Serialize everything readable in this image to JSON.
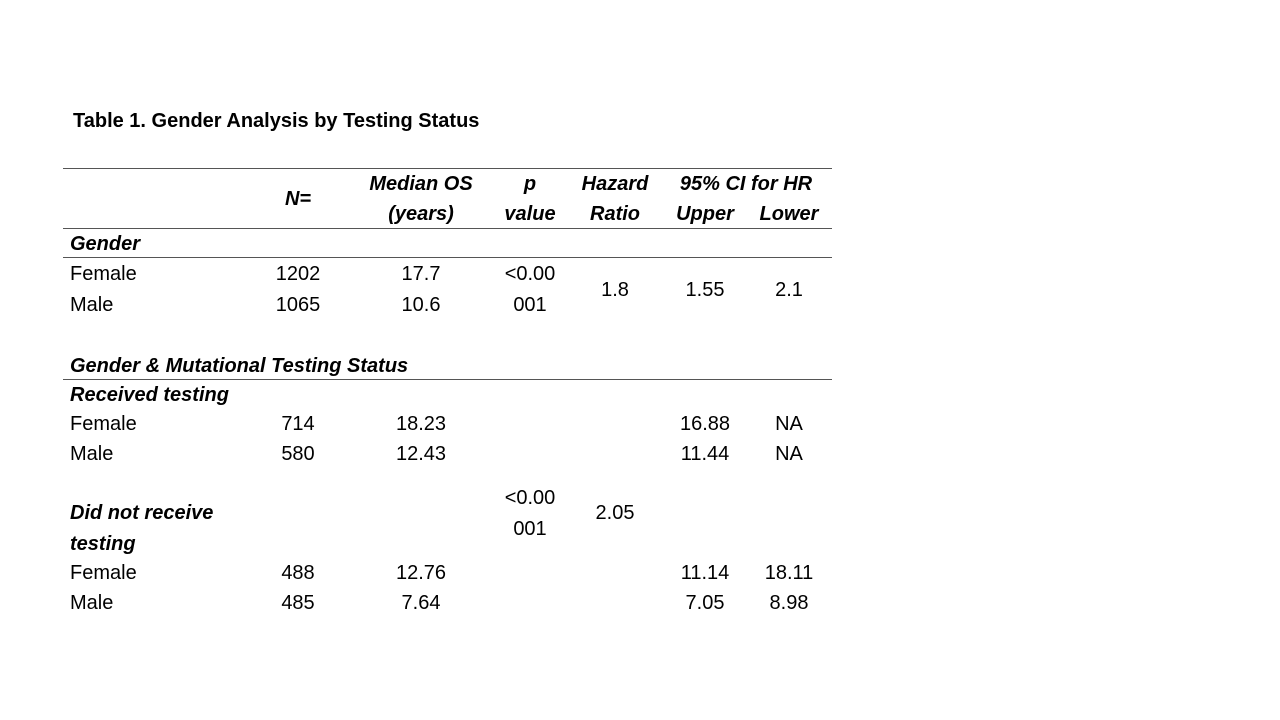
{
  "title": "Table 1. Gender Analysis by Testing Status",
  "headers": {
    "n": "N=",
    "median_os_1": "Median OS",
    "median_os_2": "(years)",
    "p_1": "p",
    "p_2": "value",
    "hr_1": "Hazard",
    "hr_2": "Ratio",
    "ci": "95% CI for HR",
    "upper": "Upper",
    "lower": "Lower"
  },
  "sections": {
    "gender": "Gender",
    "gender_testing": "Gender & Mutational Testing Status",
    "received": "Received testing",
    "not_received_1": "Did not receive",
    "not_received_2": "testing"
  },
  "gender_rows": [
    {
      "label": "Female",
      "n": "1202",
      "median": "17.7"
    },
    {
      "label": "Male",
      "n": "1065",
      "median": "10.6"
    }
  ],
  "gender_stats": {
    "p_1": "<0.00",
    "p_2": "001",
    "hr": "1.8",
    "upper": "1.55",
    "lower": "2.1"
  },
  "received_rows": [
    {
      "label": "Female",
      "n": "714",
      "median": "18.23",
      "upper": "16.88",
      "lower": "NA"
    },
    {
      "label": "Male",
      "n": "580",
      "median": "12.43",
      "upper": "11.44",
      "lower": "NA"
    }
  ],
  "testing_stats": {
    "p_1": "<0.00",
    "p_2": "001",
    "hr": "2.05"
  },
  "not_received_rows": [
    {
      "label": "Female",
      "n": "488",
      "median": "12.76",
      "upper": "11.14",
      "lower": "18.11"
    },
    {
      "label": "Male",
      "n": "485",
      "median": "7.64",
      "upper": "7.05",
      "lower": "8.98"
    }
  ]
}
